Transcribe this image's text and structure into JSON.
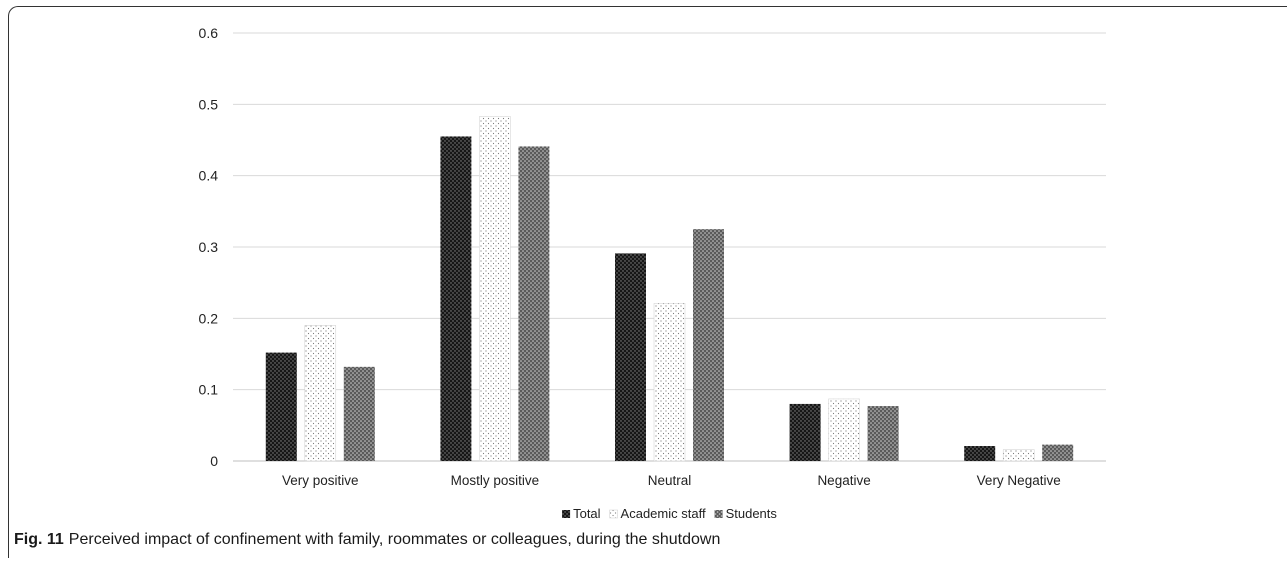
{
  "chart_data": {
    "type": "bar",
    "categories": [
      "Very positive",
      "Mostly positive",
      "Neutral",
      "Negative",
      "Very Negative"
    ],
    "series": [
      {
        "name": "Total",
        "values": [
          0.152,
          0.455,
          0.291,
          0.08,
          0.021
        ],
        "pattern": "dark"
      },
      {
        "name": "Academic staff",
        "values": [
          0.19,
          0.483,
          0.221,
          0.087,
          0.016
        ],
        "pattern": "light"
      },
      {
        "name": "Students",
        "values": [
          0.132,
          0.441,
          0.325,
          0.077,
          0.023
        ],
        "pattern": "medium"
      }
    ],
    "yticks": [
      "0",
      "0.1",
      "0.2",
      "0.3",
      "0.4",
      "0.5",
      "0.6"
    ],
    "ylim": [
      0,
      0.6
    ],
    "grid": true,
    "legend_position": "bottom",
    "colors": {
      "gridline": "#d9d9d9",
      "axis": "#bfbfbf",
      "dark": "#1a1a1a",
      "light": "#ffffff",
      "medium": "#5a5a5a"
    }
  },
  "caption": {
    "label": "Fig. 11",
    "text": "Perceived impact of confinement with family, roommates or colleagues, during the shutdown"
  }
}
